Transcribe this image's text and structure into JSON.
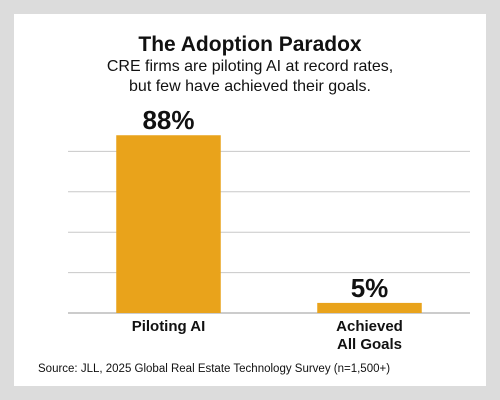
{
  "chart_data": {
    "type": "bar",
    "title": "The Adoption Paradox",
    "subtitle": "CRE firms are piloting AI at record rates, but few have achieved their goals.",
    "categories": [
      "Piloting AI",
      "Achieved\nAll Goals"
    ],
    "values": [
      88,
      5
    ],
    "value_labels": [
      "88%",
      "5%"
    ],
    "color": "#e9a31b",
    "ylim": [
      0,
      100
    ],
    "yticks": [
      0,
      20,
      40,
      60,
      80
    ],
    "grid": true,
    "source": "Source: JLL, 2025 Global Real Estate Technology Survey (n=1,500+)"
  }
}
